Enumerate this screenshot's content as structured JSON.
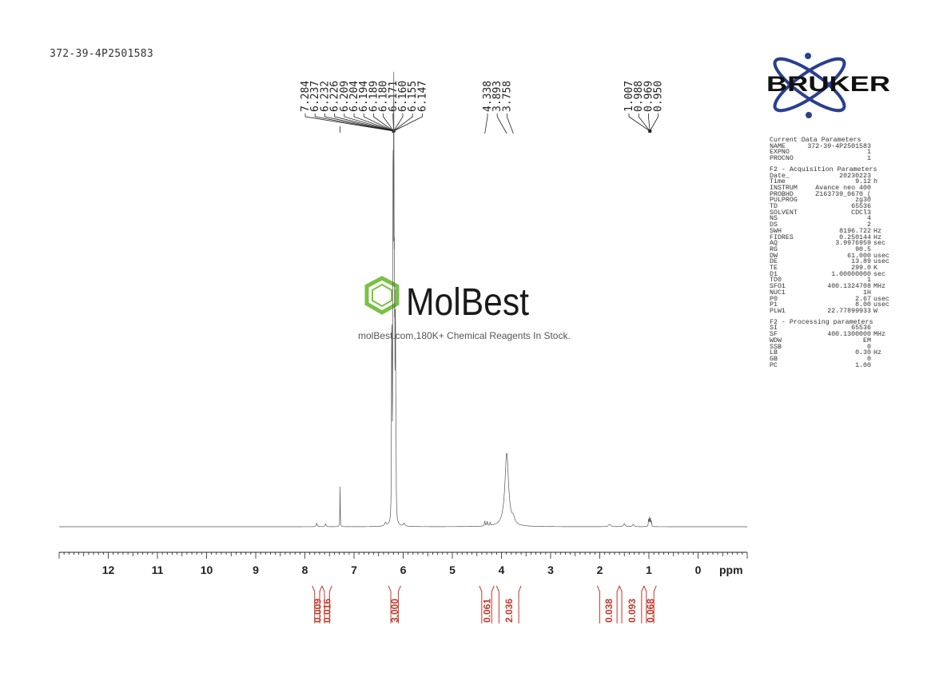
{
  "sample_name": "372-39-4P2501583",
  "brand": {
    "logo_text": "BRUKER",
    "logo_color": "#2a3f8f",
    "watermark_name": "MolBest",
    "watermark_tagline": "molBest.com,180K+ Chemical Reagents In Stock.",
    "watermark_color": "#7ac143"
  },
  "chart_data": {
    "type": "line",
    "xlabel": "ppm",
    "xlim": [
      13.0,
      -1.0
    ],
    "x_reversed": true,
    "x_tick_labels": [
      "12",
      "11",
      "10",
      "9",
      "8",
      "7",
      "6",
      "5",
      "4",
      "3",
      "2",
      "1",
      "0"
    ],
    "peaks": [
      {
        "ppm": 7.76,
        "height": 0.012,
        "width": 0.012
      },
      {
        "ppm": 7.58,
        "height": 0.01,
        "width": 0.012
      },
      {
        "ppm": 7.284,
        "height": 0.145,
        "width": 0.004
      },
      {
        "ppm": 6.36,
        "height": 0.012,
        "width": 0.02
      },
      {
        "ppm": 6.237,
        "height": 0.34,
        "width": 0.004
      },
      {
        "ppm": 6.232,
        "height": 0.38,
        "width": 0.004
      },
      {
        "ppm": 6.226,
        "height": 0.45,
        "width": 0.004
      },
      {
        "ppm": 6.209,
        "height": 0.7,
        "width": 0.004
      },
      {
        "ppm": 6.204,
        "height": 0.85,
        "width": 0.004
      },
      {
        "ppm": 6.194,
        "height": 1.0,
        "width": 0.004
      },
      {
        "ppm": 6.189,
        "height": 0.92,
        "width": 0.004
      },
      {
        "ppm": 6.18,
        "height": 0.7,
        "width": 0.004
      },
      {
        "ppm": 6.171,
        "height": 0.55,
        "width": 0.004
      },
      {
        "ppm": 6.16,
        "height": 0.45,
        "width": 0.004
      },
      {
        "ppm": 6.155,
        "height": 0.4,
        "width": 0.004
      },
      {
        "ppm": 6.147,
        "height": 0.3,
        "width": 0.004
      },
      {
        "ppm": 5.98,
        "height": 0.01,
        "width": 0.02
      },
      {
        "ppm": 4.338,
        "height": 0.018,
        "width": 0.008
      },
      {
        "ppm": 4.29,
        "height": 0.015,
        "width": 0.008
      },
      {
        "ppm": 4.23,
        "height": 0.012,
        "width": 0.008
      },
      {
        "ppm": 3.893,
        "height": 0.26,
        "width": 0.045
      },
      {
        "ppm": 3.758,
        "height": 0.02,
        "width": 0.03
      },
      {
        "ppm": 1.8,
        "height": 0.008,
        "width": 0.03
      },
      {
        "ppm": 1.5,
        "height": 0.01,
        "width": 0.02
      },
      {
        "ppm": 1.32,
        "height": 0.008,
        "width": 0.02
      },
      {
        "ppm": 1.007,
        "height": 0.025,
        "width": 0.006
      },
      {
        "ppm": 0.988,
        "height": 0.03,
        "width": 0.006
      },
      {
        "ppm": 0.969,
        "height": 0.028,
        "width": 0.006
      },
      {
        "ppm": 0.95,
        "height": 0.018,
        "width": 0.006
      }
    ],
    "peak_label_groups": [
      {
        "labels": [
          "7.284",
          "6.237",
          "6.232",
          "6.226",
          "6.209",
          "6.204",
          "6.194",
          "6.189",
          "6.180",
          "6.171",
          "6.160",
          "6.155",
          "6.147"
        ],
        "focus_ppm": 6.194
      },
      {
        "labels": [
          "4.338",
          "3.893",
          "3.758"
        ],
        "focus_ppm": null
      },
      {
        "labels": [
          "1.007",
          "0.988",
          "0.969",
          "0.950"
        ],
        "focus_ppm": 0.98
      }
    ],
    "integrals": [
      {
        "value": "0.009",
        "from": 7.85,
        "to": 7.65
      },
      {
        "value": "0.016",
        "from": 7.65,
        "to": 7.45
      },
      {
        "value": "3.000",
        "from": 6.3,
        "to": 6.05
      },
      {
        "value": "0.061",
        "from": 4.45,
        "to": 4.15
      },
      {
        "value": "2.036",
        "from": 4.1,
        "to": 3.6
      },
      {
        "value": "0.038",
        "from": 2.05,
        "to": 1.6
      },
      {
        "value": "0.093",
        "from": 1.6,
        "to": 1.1
      },
      {
        "value": "0.068",
        "from": 1.1,
        "to": 0.85
      }
    ],
    "line_color": "#555555",
    "integral_color": "#c0392b"
  },
  "parameters": {
    "current": {
      "title": "Current Data Parameters",
      "rows": [
        {
          "k": "NAME",
          "v": "372-39-4P2501583",
          "u": ""
        },
        {
          "k": "EXPNO",
          "v": "1",
          "u": ""
        },
        {
          "k": "PROCNO",
          "v": "1",
          "u": ""
        }
      ]
    },
    "acquisition": {
      "title": "F2 - Acquisition Parameters",
      "rows": [
        {
          "k": "Date_",
          "v": "20230223",
          "u": ""
        },
        {
          "k": "Time",
          "v": "9.12",
          "u": "h"
        },
        {
          "k": "INSTRUM",
          "v": "Avance neo 400",
          "u": ""
        },
        {
          "k": "PROBHD",
          "v": "Z163739_0670 (",
          "u": ""
        },
        {
          "k": "PULPROG",
          "v": "zg30",
          "u": ""
        },
        {
          "k": "TD",
          "v": "65536",
          "u": ""
        },
        {
          "k": "SOLVENT",
          "v": "CDCl3",
          "u": ""
        },
        {
          "k": "NS",
          "v": "4",
          "u": ""
        },
        {
          "k": "DS",
          "v": "2",
          "u": ""
        },
        {
          "k": "SWH",
          "v": "8196.722",
          "u": "Hz"
        },
        {
          "k": "FIDRES",
          "v": "0.250144",
          "u": "Hz"
        },
        {
          "k": "AQ",
          "v": "3.9976959",
          "u": "sec"
        },
        {
          "k": "RG",
          "v": "90.5",
          "u": ""
        },
        {
          "k": "DW",
          "v": "61.000",
          "u": "usec"
        },
        {
          "k": "DE",
          "v": "13.89",
          "u": "usec"
        },
        {
          "k": "TE",
          "v": "299.0",
          "u": "K"
        },
        {
          "k": "D1",
          "v": "1.00000000",
          "u": "sec"
        },
        {
          "k": "TD0",
          "v": "1",
          "u": ""
        },
        {
          "k": "SFO1",
          "v": "400.1324708",
          "u": "MHz"
        },
        {
          "k": "NUC1",
          "v": "1H",
          "u": ""
        },
        {
          "k": "P0",
          "v": "2.67",
          "u": "usec"
        },
        {
          "k": "P1",
          "v": "8.00",
          "u": "usec"
        },
        {
          "k": "PLW1",
          "v": "22.77899933",
          "u": "W"
        }
      ]
    },
    "processing": {
      "title": "F2 - Processing parameters",
      "rows": [
        {
          "k": "SI",
          "v": "65536",
          "u": ""
        },
        {
          "k": "SF",
          "v": "400.1300000",
          "u": "MHz"
        },
        {
          "k": "WDW",
          "v": "EM",
          "u": ""
        },
        {
          "k": "SSB",
          "v": "0",
          "u": ""
        },
        {
          "k": "LB",
          "v": "0.30",
          "u": "Hz"
        },
        {
          "k": "GB",
          "v": "0",
          "u": ""
        },
        {
          "k": "PC",
          "v": "1.00",
          "u": ""
        }
      ]
    }
  }
}
